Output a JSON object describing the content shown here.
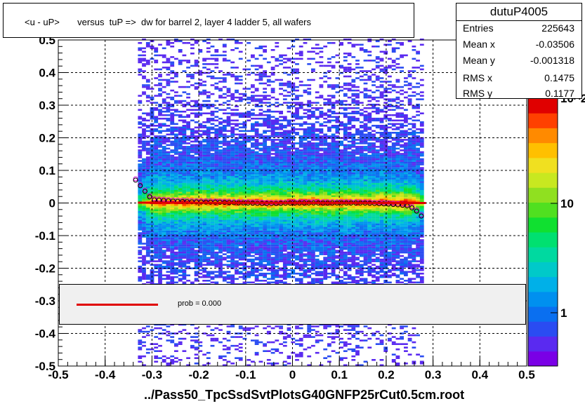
{
  "title": "<u - uP>       versus  tuP =>  dw for barrel 2, layer 4 ladder 5, all wafers",
  "stats": {
    "name": "dutuP4005",
    "rows": [
      {
        "k": "Entries",
        "v": "225643"
      },
      {
        "k": "Mean x",
        "v": "-0.03506"
      },
      {
        "k": "Mean y",
        "v": "-0.001318"
      },
      {
        "k": "RMS x",
        "v": "0.1475"
      },
      {
        "k": "RMS y",
        "v": "0.1177"
      }
    ]
  },
  "legend": {
    "label": "prob = 0.000",
    "color": "#e00000"
  },
  "xlabel": "../Pass50_TpcSsdSvtPlotsG40GNFP25rCut0.5cm.root",
  "colors": {
    "fit": "#e00000",
    "profile_black": "#000000",
    "profile_magenta": "#d000d0"
  },
  "chart_data": {
    "type": "heatmap",
    "xlim": [
      -0.5,
      0.5
    ],
    "ylim": [
      -0.5,
      0.5
    ],
    "x_ticks": [
      "-0.5",
      "-0.4",
      "-0.3",
      "-0.2",
      "-0.1",
      "0",
      "0.1",
      "0.2",
      "0.3",
      "0.4",
      "0.5"
    ],
    "y_ticks": [
      "-0.5",
      "-0.4",
      "-0.3",
      "-0.2",
      "-0.1",
      "0",
      "0.1",
      "0.2",
      "0.3",
      "0.4",
      "0.5"
    ],
    "z_scale": "log",
    "z_ticks": [
      "1",
      "10",
      "10^2"
    ],
    "grid": true,
    "x_data_range": [
      -0.33,
      0.28
    ],
    "fit_line": {
      "x": [
        -0.33,
        0.285
      ],
      "y": [
        0.001,
        0.0
      ]
    },
    "profile": {
      "x": [
        -0.335,
        -0.3,
        -0.25,
        -0.2,
        -0.15,
        -0.1,
        -0.05,
        0.0,
        0.05,
        0.1,
        0.15,
        0.2,
        0.23,
        0.25,
        0.27,
        0.285
      ],
      "y": [
        0.07,
        0.01,
        0.005,
        0.003,
        0.002,
        0.0,
        -0.002,
        0.0,
        0.0,
        0.0,
        0.0,
        -0.003,
        -0.006,
        -0.01,
        -0.03,
        -0.06
      ]
    }
  }
}
